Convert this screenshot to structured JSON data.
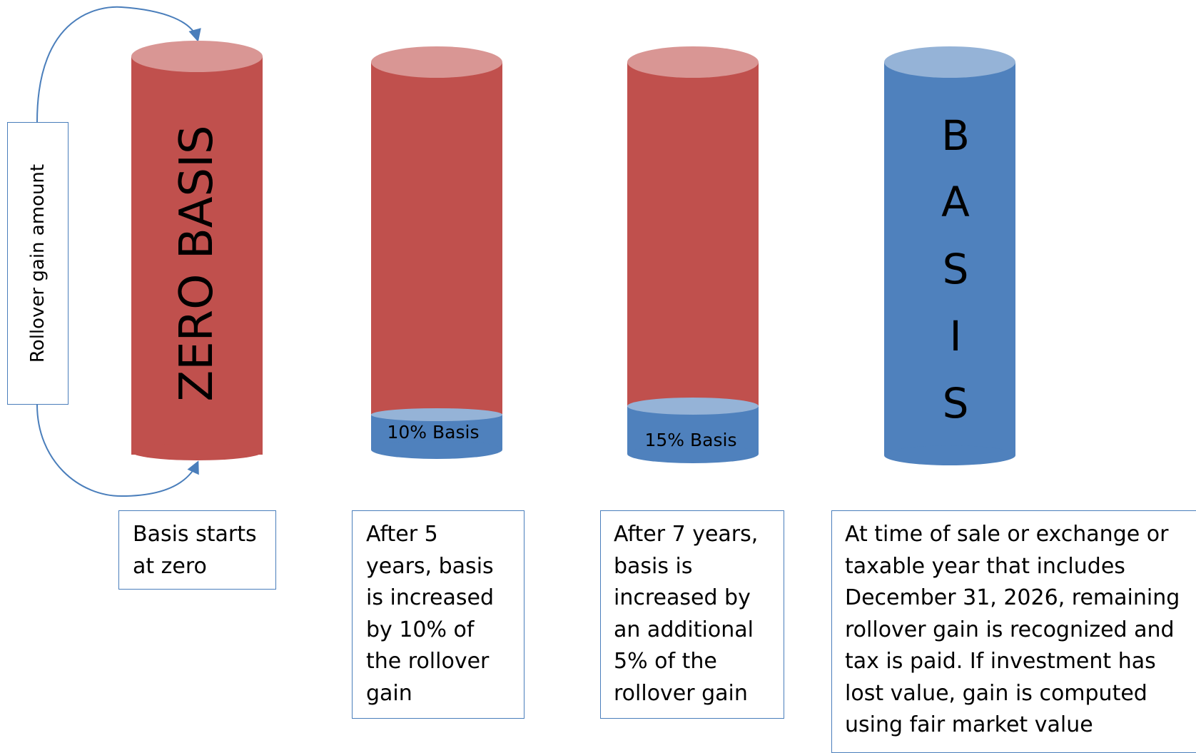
{
  "colors": {
    "red_body": "#c0504d",
    "red_top": "#d99694",
    "blue_body": "#4f81bd",
    "blue_top": "#95b3d7",
    "border_blue": "#4a7ebb"
  },
  "rollover_label": "Rollover gain amount",
  "cylinder_1": {
    "label": "ZERO BASIS",
    "basis_fraction": 0
  },
  "cylinder_2": {
    "label": "10% Basis",
    "basis_fraction": 0.1
  },
  "cylinder_3": {
    "label": "15% Basis",
    "basis_fraction": 0.15
  },
  "cylinder_4": {
    "letters": [
      "B",
      "A",
      "S",
      "I",
      "S"
    ],
    "basis_fraction": 1
  },
  "captions": [
    {
      "lines": [
        "Basis starts",
        "at zero"
      ]
    },
    {
      "lines": [
        "After 5",
        "years, basis",
        "is increased",
        "by 10% of",
        "the rollover",
        "gain"
      ]
    },
    {
      "lines": [
        "After 7 years,",
        "basis is",
        "increased by",
        "an additional",
        "5% of the",
        "rollover gain"
      ]
    },
    {
      "lines": [
        "At time of sale or exchange or",
        "taxable year that includes",
        "December 31, 2026, remaining",
        "rollover gain is recognized and",
        "tax is paid. If investment has",
        "lost value, gain is computed",
        "using fair market value"
      ]
    }
  ]
}
